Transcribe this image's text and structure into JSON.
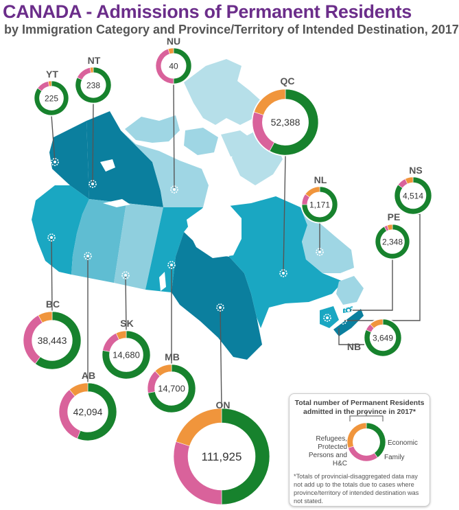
{
  "title": "CANADA - Admissions of Permanent Residents",
  "subtitle": "by Immigration Category and Province/Territory of Intended Destination, 2017",
  "colors": {
    "economic": "#17822d",
    "family": "#d9629b",
    "refugees": "#f0953c",
    "map_dark": "#0b7f9e",
    "map_mid": "#1aa7c2",
    "map_light": "#9fd6e4",
    "map_pale": "#b6dfe9"
  },
  "chart_data": {
    "type": "pie",
    "style": "donut",
    "categories": [
      "Economic",
      "Family",
      "Refugees, Protected Persons and H&C"
    ],
    "regions": [
      {
        "abbr": "YT",
        "total": "225",
        "economic": 0.85,
        "family": 0.12,
        "refugees": 0.03
      },
      {
        "abbr": "NT",
        "total": "238",
        "economic": 0.82,
        "family": 0.15,
        "refugees": 0.03
      },
      {
        "abbr": "NU",
        "total": "40",
        "economic": 0.5,
        "family": 0.45,
        "refugees": 0.05
      },
      {
        "abbr": "QC",
        "total": "52,388",
        "economic": 0.58,
        "family": 0.22,
        "refugees": 0.2
      },
      {
        "abbr": "NL",
        "total": "1,171",
        "economic": 0.75,
        "family": 0.1,
        "refugees": 0.15
      },
      {
        "abbr": "NS",
        "total": "4,514",
        "economic": 0.85,
        "family": 0.08,
        "refugees": 0.07
      },
      {
        "abbr": "PE",
        "total": "2,348",
        "economic": 0.92,
        "family": 0.03,
        "refugees": 0.05
      },
      {
        "abbr": "NB",
        "total": "3,649",
        "economic": 0.82,
        "family": 0.06,
        "refugees": 0.12
      },
      {
        "abbr": "BC",
        "total": "38,443",
        "economic": 0.6,
        "family": 0.32,
        "refugees": 0.08
      },
      {
        "abbr": "AB",
        "total": "42,094",
        "economic": 0.56,
        "family": 0.33,
        "refugees": 0.11
      },
      {
        "abbr": "SK",
        "total": "14,680",
        "economic": 0.78,
        "family": 0.15,
        "refugees": 0.07
      },
      {
        "abbr": "MB",
        "total": "14,700",
        "economic": 0.72,
        "family": 0.16,
        "refugees": 0.12
      },
      {
        "abbr": "ON",
        "total": "111,925",
        "economic": 0.5,
        "family": 0.3,
        "refugees": 0.2
      }
    ]
  },
  "legend": {
    "title": "Total number of Permanent Residents admitted in the province in 2017*",
    "economic": "Economic",
    "family": "Family",
    "refugees": "Refugees, Protected Persons and H&C",
    "note": "*Totals of provincial-disaggregated data may not add up to the totals due to cases where province/territory of intended destination was not stated."
  }
}
